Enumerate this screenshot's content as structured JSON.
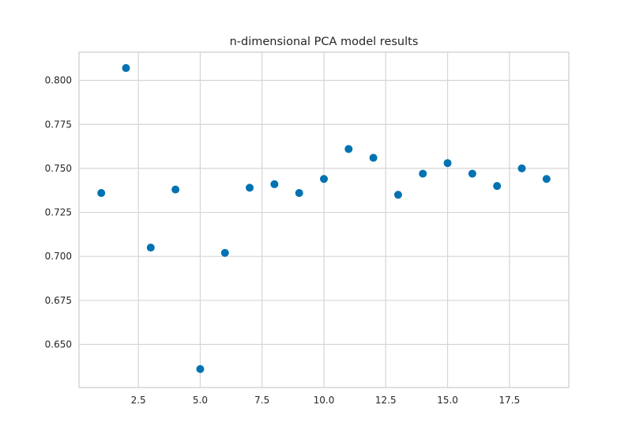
{
  "chart_data": {
    "type": "scatter",
    "title": "n-dimensional PCA model results",
    "xlabel": "",
    "ylabel": "",
    "xlim": [
      0.1,
      19.9
    ],
    "ylim": [
      0.6255,
      0.816
    ],
    "x_ticks": [
      2.5,
      5.0,
      7.5,
      10.0,
      12.5,
      15.0,
      17.5
    ],
    "x_tick_labels": [
      "2.5",
      "5.0",
      "7.5",
      "10.0",
      "12.5",
      "15.0",
      "17.5"
    ],
    "y_ticks": [
      0.65,
      0.675,
      0.7,
      0.725,
      0.75,
      0.775,
      0.8
    ],
    "y_tick_labels": [
      "0.650",
      "0.675",
      "0.700",
      "0.725",
      "0.750",
      "0.775",
      "0.800"
    ],
    "grid": true,
    "marker_color": "#0072b2",
    "series": [
      {
        "x": [
          1,
          2,
          3,
          4,
          5,
          6,
          7,
          8,
          9,
          10,
          11,
          12,
          13,
          14,
          15,
          16,
          17,
          18,
          19
        ],
        "y": [
          0.736,
          0.807,
          0.705,
          0.738,
          0.636,
          0.702,
          0.739,
          0.741,
          0.736,
          0.744,
          0.761,
          0.756,
          0.735,
          0.747,
          0.753,
          0.747,
          0.74,
          0.75,
          0.744
        ]
      }
    ]
  }
}
